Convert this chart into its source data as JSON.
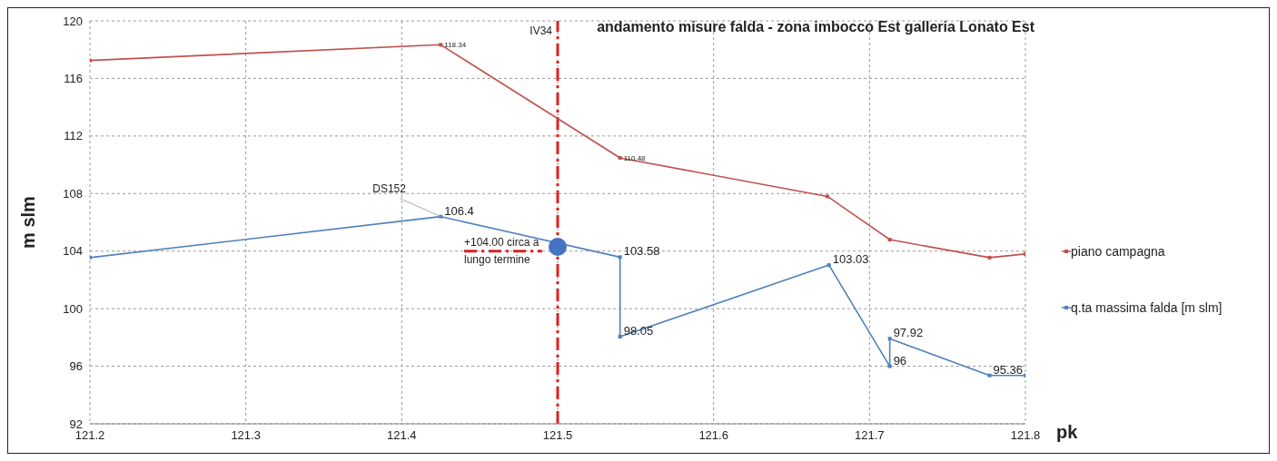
{
  "chart_data": {
    "type": "line",
    "title": "andamento misure falda - zona imbocco Est galleria Lonato Est",
    "xlabel": "pk",
    "ylabel": "m slm",
    "xlim": [
      121.2,
      121.8
    ],
    "xticks": [
      121.2,
      121.3,
      121.4,
      121.5,
      121.6,
      121.7,
      121.8
    ],
    "ylim": [
      92,
      120
    ],
    "yticks": [
      92,
      96,
      100,
      104,
      108,
      112,
      116,
      120
    ],
    "grid": true,
    "legend": "right",
    "marker": "square",
    "line_style": "solid",
    "series": [
      {
        "name": "piano campagna",
        "color": "#c0504d",
        "x": [
          121.2,
          121.425,
          121.54,
          121.673,
          121.713,
          121.777,
          121.8
        ],
        "values": [
          117.25,
          118.34,
          110.48,
          107.8,
          104.8,
          103.55,
          103.8
        ],
        "value_labels": [
          null,
          "118.34",
          "110.48",
          null,
          null,
          null,
          null
        ]
      },
      {
        "name": "q.ta massima falda [m slm]",
        "color": "#4f81bd",
        "x": [
          121.2,
          121.425,
          121.54,
          121.54,
          121.674,
          121.713,
          121.713,
          121.777,
          121.8
        ],
        "values": [
          103.55,
          106.4,
          103.58,
          98.05,
          103.03,
          96,
          97.92,
          95.36,
          95.36
        ],
        "value_labels": [
          null,
          "106.4",
          "103.58",
          "98.05",
          "103.03",
          "96",
          "97.92",
          "95.36",
          null
        ]
      },
      {
        "type": "line",
        "color": "#e02020",
        "line_style": "dashed",
        "marker": "none",
        "x": [
          121.44,
          121.49
        ],
        "values": [
          104,
          104
        ]
      },
      {
        "type": "scatter",
        "color": "#4472c4",
        "marker": "circle",
        "x": [
          121.5
        ],
        "values": [
          104.3
        ]
      }
    ],
    "ref_lines": [
      {
        "axis": "x",
        "value": 121.5,
        "label": "IV34",
        "color": "#e02020",
        "line_style": "dashed"
      }
    ],
    "annotations": [
      {
        "text": "DS152",
        "x": 121.425,
        "y": 106.4
      },
      {
        "text": "+104.00 circa a lungo termine",
        "x": 121.44,
        "y": 104
      }
    ]
  }
}
